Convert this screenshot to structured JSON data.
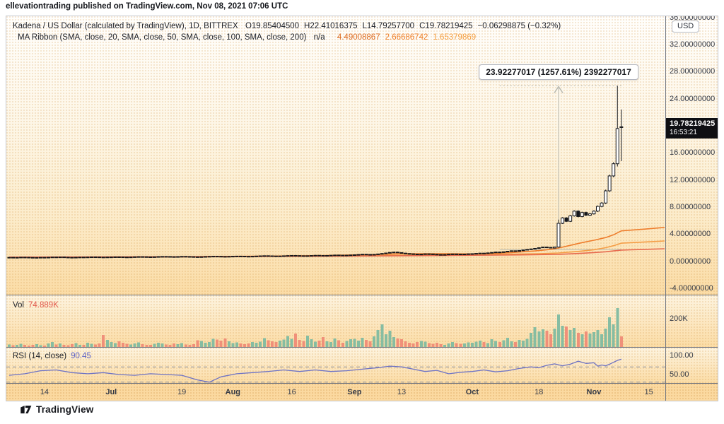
{
  "header": {
    "publish_line": "ellevationtrading published on TradingView.com, Nov 08, 2021 07:06 UTC"
  },
  "legend": {
    "title": "Kadena / US Dollar (calculated by TradingView), 1D, BITTREX",
    "ohlc": [
      {
        "k": "O",
        "v": "19.85404500"
      },
      {
        "k": "H",
        "v": "22.41016375"
      },
      {
        "k": "L",
        "v": "14.79257700"
      },
      {
        "k": "C",
        "v": "19.78219425"
      }
    ],
    "change": "−0.06298875 (−0.32%)",
    "ma": {
      "label": "MA Ribbon (SMA, close, 20, SMA, close, 50, SMA, close, 100, SMA, close, 200)",
      "na": "n/a",
      "values": [
        {
          "v": "4.49008867",
          "color": "#dd6a1e"
        },
        {
          "v": "2.66686742",
          "color": "#ef7f28"
        },
        {
          "v": "1.65379869",
          "color": "#f49d3e"
        }
      ]
    }
  },
  "axis": {
    "currency_badge": "USD",
    "price_ticks": [
      {
        "label": "36.00000000",
        "value": 36
      },
      {
        "label": "32.00000000",
        "value": 32
      },
      {
        "label": "28.00000000",
        "value": 28
      },
      {
        "label": "24.00000000",
        "value": 24
      },
      {
        "label": "16.00000000",
        "value": 16
      },
      {
        "label": "12.00000000",
        "value": 12
      },
      {
        "label": "8.00000000",
        "value": 8
      },
      {
        "label": "4.00000000",
        "value": 4
      },
      {
        "label": "0.00000000",
        "value": 0
      },
      {
        "label": "-4.00000000",
        "value": -4
      }
    ],
    "vol_ticks": [
      {
        "label": "200K",
        "value": 200
      }
    ],
    "rsi_ticks": [
      {
        "label": "100.00",
        "value": 100
      },
      {
        "label": "50.00",
        "value": 50
      }
    ],
    "last_price": {
      "value": "19.78219425",
      "countdown": "16:53:21"
    }
  },
  "panes": {
    "vol_label": "Vol",
    "vol_value": "74.889K",
    "rsi_label": "RSI (14, close)",
    "rsi_value": "90.45"
  },
  "time_axis": {
    "labels": [
      {
        "text": "14",
        "day": 9,
        "month": false
      },
      {
        "text": "Jul",
        "day": 26,
        "month": true
      },
      {
        "text": "19",
        "day": 44,
        "month": false
      },
      {
        "text": "Aug",
        "day": 57,
        "month": true
      },
      {
        "text": "16",
        "day": 72,
        "month": false
      },
      {
        "text": "Sep",
        "day": 88,
        "month": true
      },
      {
        "text": "13",
        "day": 100,
        "month": false
      },
      {
        "text": "Oct",
        "day": 118,
        "month": true
      },
      {
        "text": "18",
        "day": 135,
        "month": false
      },
      {
        "text": "Nov",
        "day": 149,
        "month": true
      },
      {
        "text": "15",
        "day": 163,
        "month": false
      }
    ]
  },
  "footer": {
    "brand": "TradingView"
  },
  "chart_data": {
    "type": "candlestick",
    "title": "Kadena / US Dollar",
    "interval": "1D",
    "exchange": "BITTREX",
    "unit": "USD",
    "legend_position": "top-left",
    "grid": false,
    "price": {
      "ylim": [
        -4.7,
        35.8
      ],
      "candle_up_color": "#ffffff",
      "candle_down_color": "#15171c",
      "candle_border_color": "#15171c",
      "closes": [
        0.58,
        0.56,
        0.57,
        0.6,
        0.59,
        0.57,
        0.55,
        0.56,
        0.58,
        0.57,
        0.59,
        0.62,
        0.61,
        0.63,
        0.6,
        0.58,
        0.57,
        0.59,
        0.61,
        0.6,
        0.62,
        0.64,
        0.63,
        0.61,
        0.6,
        0.62,
        0.63,
        0.65,
        0.64,
        0.62,
        0.61,
        0.63,
        0.66,
        0.68,
        0.67,
        0.65,
        0.64,
        0.66,
        0.69,
        0.71,
        0.7,
        0.68,
        0.67,
        0.69,
        0.72,
        0.7,
        0.68,
        0.66,
        0.65,
        0.67,
        0.7,
        0.72,
        0.74,
        0.73,
        0.71,
        0.7,
        0.72,
        0.74,
        0.76,
        0.75,
        0.73,
        0.72,
        0.74,
        0.77,
        0.8,
        0.82,
        0.8,
        0.78,
        0.76,
        0.78,
        0.81,
        0.84,
        0.86,
        0.84,
        0.82,
        0.8,
        0.82,
        0.85,
        0.88,
        0.86,
        0.84,
        0.86,
        0.89,
        0.92,
        0.9,
        0.88,
        0.9,
        0.93,
        0.96,
        1.0,
        1.04,
        1.01,
        0.98,
        1.02,
        1.08,
        1.15,
        1.22,
        1.3,
        1.35,
        1.28,
        1.2,
        1.14,
        1.1,
        1.06,
        1.02,
        1.05,
        1.1,
        1.08,
        1.04,
        1.0,
        0.97,
        1.0,
        1.05,
        1.08,
        1.06,
        1.03,
        1.06,
        1.1,
        1.12,
        1.16,
        1.2,
        1.18,
        1.24,
        1.3,
        1.36,
        1.32,
        1.4,
        1.48,
        1.55,
        1.5,
        1.58,
        1.66,
        1.75,
        1.82,
        1.9,
        2.0,
        2.1,
        2.05,
        1.95,
        2.1,
        5.6,
        6.4,
        5.9,
        6.7,
        7.4,
        6.6,
        7.2,
        6.8,
        7.0,
        7.4,
        8.1,
        8.6,
        10.4,
        12.6,
        14.4,
        19.6,
        19.78
      ],
      "overrides": {
        "140": [
          2.1,
          6.15,
          2.02,
          5.6
        ],
        "155": [
          14.4,
          25.9,
          14.0,
          19.6
        ],
        "156": [
          19.854045,
          22.410164,
          14.792577,
          19.782194
        ]
      },
      "last": {
        "open": "19.85404500",
        "high": "22.41016375",
        "low": "14.79257700",
        "close": "19.78219425",
        "change": "−0.06298875",
        "change_pct": "−0.32%"
      }
    },
    "ma_ribbon": {
      "series": [
        {
          "name": "SMA 20",
          "color": "#ee7d2c",
          "last": "4.49008867",
          "points": [
            [
              0,
              0.58
            ],
            [
              20,
              0.6
            ],
            [
              40,
              0.66
            ],
            [
              60,
              0.73
            ],
            [
              80,
              0.83
            ],
            [
              95,
              1.02
            ],
            [
              100,
              1.12
            ],
            [
              110,
              1.12
            ],
            [
              120,
              1.08
            ],
            [
              128,
              1.28
            ],
            [
              134,
              1.52
            ],
            [
              138,
              1.75
            ],
            [
              140,
              1.95
            ],
            [
              143,
              2.35
            ],
            [
              146,
              2.75
            ],
            [
              149,
              3.1
            ],
            [
              152,
              3.5
            ],
            [
              154,
              3.9
            ],
            [
              156,
              4.49
            ],
            [
              162,
              4.75
            ],
            [
              167,
              5.0
            ]
          ]
        },
        {
          "name": "SMA 50",
          "color": "#f59d45",
          "last": "2.66686742",
          "points": [
            [
              0,
              0.6
            ],
            [
              30,
              0.63
            ],
            [
              60,
              0.7
            ],
            [
              90,
              0.82
            ],
            [
              110,
              0.95
            ],
            [
              125,
              1.03
            ],
            [
              135,
              1.12
            ],
            [
              140,
              1.22
            ],
            [
              145,
              1.45
            ],
            [
              149,
              1.7
            ],
            [
              152,
              2.0
            ],
            [
              154,
              2.3
            ],
            [
              156,
              2.67
            ],
            [
              162,
              2.85
            ],
            [
              167,
              3.0
            ]
          ]
        },
        {
          "name": "SMA 100",
          "color": "#e76a4f",
          "last": "1.65379869",
          "points": [
            [
              0,
              0.62
            ],
            [
              40,
              0.66
            ],
            [
              80,
              0.74
            ],
            [
              110,
              0.85
            ],
            [
              130,
              0.94
            ],
            [
              140,
              1.02
            ],
            [
              145,
              1.15
            ],
            [
              149,
              1.28
            ],
            [
              152,
              1.4
            ],
            [
              154,
              1.52
            ],
            [
              156,
              1.65
            ],
            [
              162,
              1.75
            ],
            [
              167,
              1.85
            ]
          ]
        }
      ],
      "sma_200": "n/a"
    },
    "volume": {
      "unit": "K",
      "up_color": "#7fbba1",
      "down_color": "#ef8b77",
      "axis_gridline": 200,
      "last_value": "74.889K",
      "values": [
        18,
        12,
        15,
        22,
        14,
        10,
        16,
        20,
        13,
        11,
        24,
        35,
        18,
        26,
        15,
        12,
        20,
        28,
        16,
        14,
        30,
        22,
        18,
        25,
        85,
        50,
        35,
        28,
        40,
        30,
        22,
        18,
        25,
        32,
        20,
        16,
        14,
        22,
        30,
        26,
        18,
        15,
        24,
        20,
        28,
        18,
        15,
        20,
        48,
        42,
        30,
        36,
        58,
        52,
        45,
        60,
        40,
        28,
        32,
        24,
        20,
        26,
        35,
        30,
        38,
        62,
        48,
        40,
        34,
        44,
        52,
        78,
        58,
        95,
        50,
        42,
        80,
        55,
        38,
        45,
        70,
        40,
        35,
        60,
        48,
        30,
        42,
        55,
        58,
        45,
        65,
        50,
        40,
        75,
        120,
        160,
        90,
        115,
        70,
        60,
        55,
        40,
        30,
        25,
        35,
        42,
        38,
        28,
        22,
        30,
        20,
        16,
        24,
        35,
        28,
        22,
        26,
        32,
        30,
        38,
        45,
        35,
        28,
        55,
        42,
        36,
        48,
        65,
        40,
        35,
        50,
        44,
        58,
        100,
        140,
        110,
        125,
        115,
        90,
        130,
        230,
        150,
        145,
        120,
        135,
        100,
        90,
        110,
        95,
        105,
        120,
        90,
        130,
        210,
        160,
        275,
        75
      ]
    },
    "rsi": {
      "label": "RSI (14, close)",
      "current": 90.45,
      "color": "#6d72c4",
      "bands": [
        70,
        30
      ],
      "band_color": "#8c9097",
      "points": [
        [
          0,
          48
        ],
        [
          4,
          52
        ],
        [
          8,
          60
        ],
        [
          12,
          62
        ],
        [
          16,
          55
        ],
        [
          20,
          52
        ],
        [
          24,
          55
        ],
        [
          28,
          50
        ],
        [
          32,
          48
        ],
        [
          36,
          52
        ],
        [
          40,
          50
        ],
        [
          44,
          48
        ],
        [
          48,
          36
        ],
        [
          51,
          30
        ],
        [
          54,
          44
        ],
        [
          58,
          52
        ],
        [
          62,
          55
        ],
        [
          66,
          58
        ],
        [
          70,
          62
        ],
        [
          74,
          58
        ],
        [
          78,
          62
        ],
        [
          82,
          58
        ],
        [
          86,
          60
        ],
        [
          90,
          64
        ],
        [
          94,
          68
        ],
        [
          97,
          72
        ],
        [
          100,
          70
        ],
        [
          103,
          64
        ],
        [
          106,
          58
        ],
        [
          109,
          61
        ],
        [
          112,
          52
        ],
        [
          115,
          56
        ],
        [
          118,
          58
        ],
        [
          121,
          62
        ],
        [
          124,
          57
        ],
        [
          127,
          60
        ],
        [
          130,
          66
        ],
        [
          133,
          70
        ],
        [
          135,
          68
        ],
        [
          137,
          74
        ],
        [
          139,
          78
        ],
        [
          141,
          73
        ],
        [
          143,
          77
        ],
        [
          145,
          85
        ],
        [
          147,
          79
        ],
        [
          149,
          81
        ],
        [
          150,
          72
        ],
        [
          151,
          75
        ],
        [
          152,
          73
        ],
        [
          153,
          77
        ],
        [
          154,
          82
        ],
        [
          155,
          87
        ],
        [
          156,
          90.45
        ]
      ]
    },
    "measurement": {
      "label": "23.92277017 (1257.61%) 2392277017",
      "anchor_day": 140,
      "base_price": 1.74,
      "top_price": 25.9,
      "span_start_day": 125,
      "span_end_day": 156,
      "line_color": "#b9bab1"
    }
  }
}
